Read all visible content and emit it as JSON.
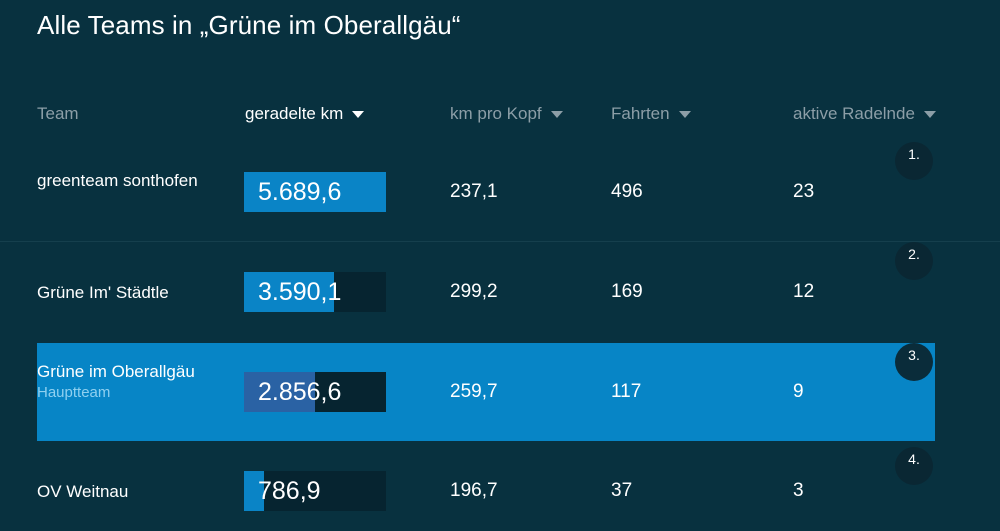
{
  "title": "Alle Teams in „Grüne im Oberallgäu“",
  "columns": {
    "team": "Team",
    "km": "geradelte km",
    "kopf": "km pro Kopf",
    "fahrten": "Fahrten",
    "aktive": "aktive Radelnde"
  },
  "sorted_by": "geradelte km",
  "colors": {
    "background": "#08313f",
    "highlight": "#0785c6",
    "bar_fill": "#0a84c6",
    "bar_fill_highlight": "#2a62a4",
    "bar_track": "#062430",
    "header_text": "#8c9ea7"
  },
  "teams": [
    {
      "rank": "1.",
      "name": "greenteam sonthofen",
      "sub": "",
      "km": "5.689,6",
      "km_value": 5689.6,
      "kopf": "237,1",
      "fahrten": "496",
      "aktive": "23",
      "highlight": false
    },
    {
      "rank": "2.",
      "name": "Grüne Im' Städtle",
      "sub": "",
      "km": "3.590,1",
      "km_value": 3590.1,
      "kopf": "299,2",
      "fahrten": "169",
      "aktive": "12",
      "highlight": false
    },
    {
      "rank": "3.",
      "name": "Grüne im Oberallgäu",
      "sub": "Hauptteam",
      "km": "2.856,6",
      "km_value": 2856.6,
      "kopf": "259,7",
      "fahrten": "117",
      "aktive": "9",
      "highlight": true
    },
    {
      "rank": "4.",
      "name": "OV Weitnau",
      "sub": "",
      "km": "786,9",
      "km_value": 786.9,
      "kopf": "196,7",
      "fahrten": "37",
      "aktive": "3",
      "highlight": false
    }
  ]
}
